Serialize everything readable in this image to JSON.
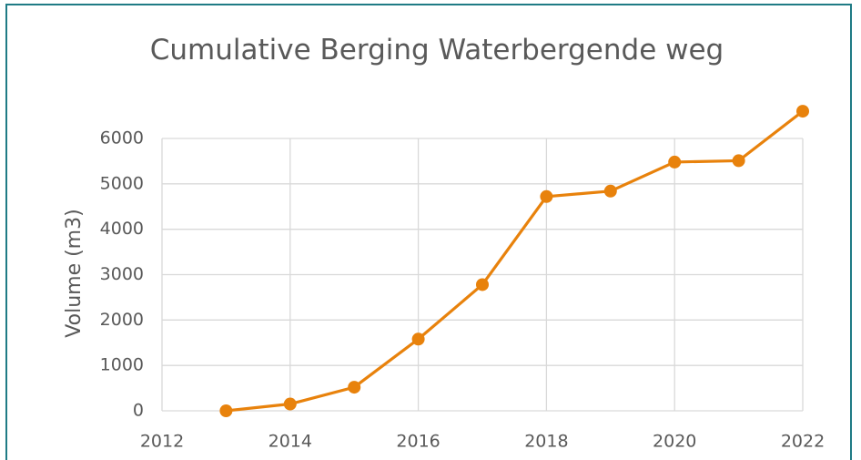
{
  "chart_data": {
    "type": "line",
    "title": "Cumulative Berging Waterbergende weg",
    "y_label": "Volume (m3)",
    "x": [
      2013,
      2014,
      2015,
      2016,
      2017,
      2018,
      2019,
      2020,
      2021,
      2022
    ],
    "series": [
      {
        "name": "Cumulative Berging",
        "color": "#e8820c",
        "values": [
          0,
          150,
          520,
          1580,
          2780,
          4720,
          4840,
          5480,
          5510,
          6600
        ]
      }
    ],
    "xlim": [
      2012,
      2022
    ],
    "xticks": [
      2012,
      2014,
      2016,
      2018,
      2020,
      2022
    ],
    "ylim": [
      0,
      6000
    ],
    "yticks": [
      0,
      1000,
      2000,
      3000,
      4000,
      5000,
      6000
    ],
    "grid": true,
    "markers": true
  }
}
